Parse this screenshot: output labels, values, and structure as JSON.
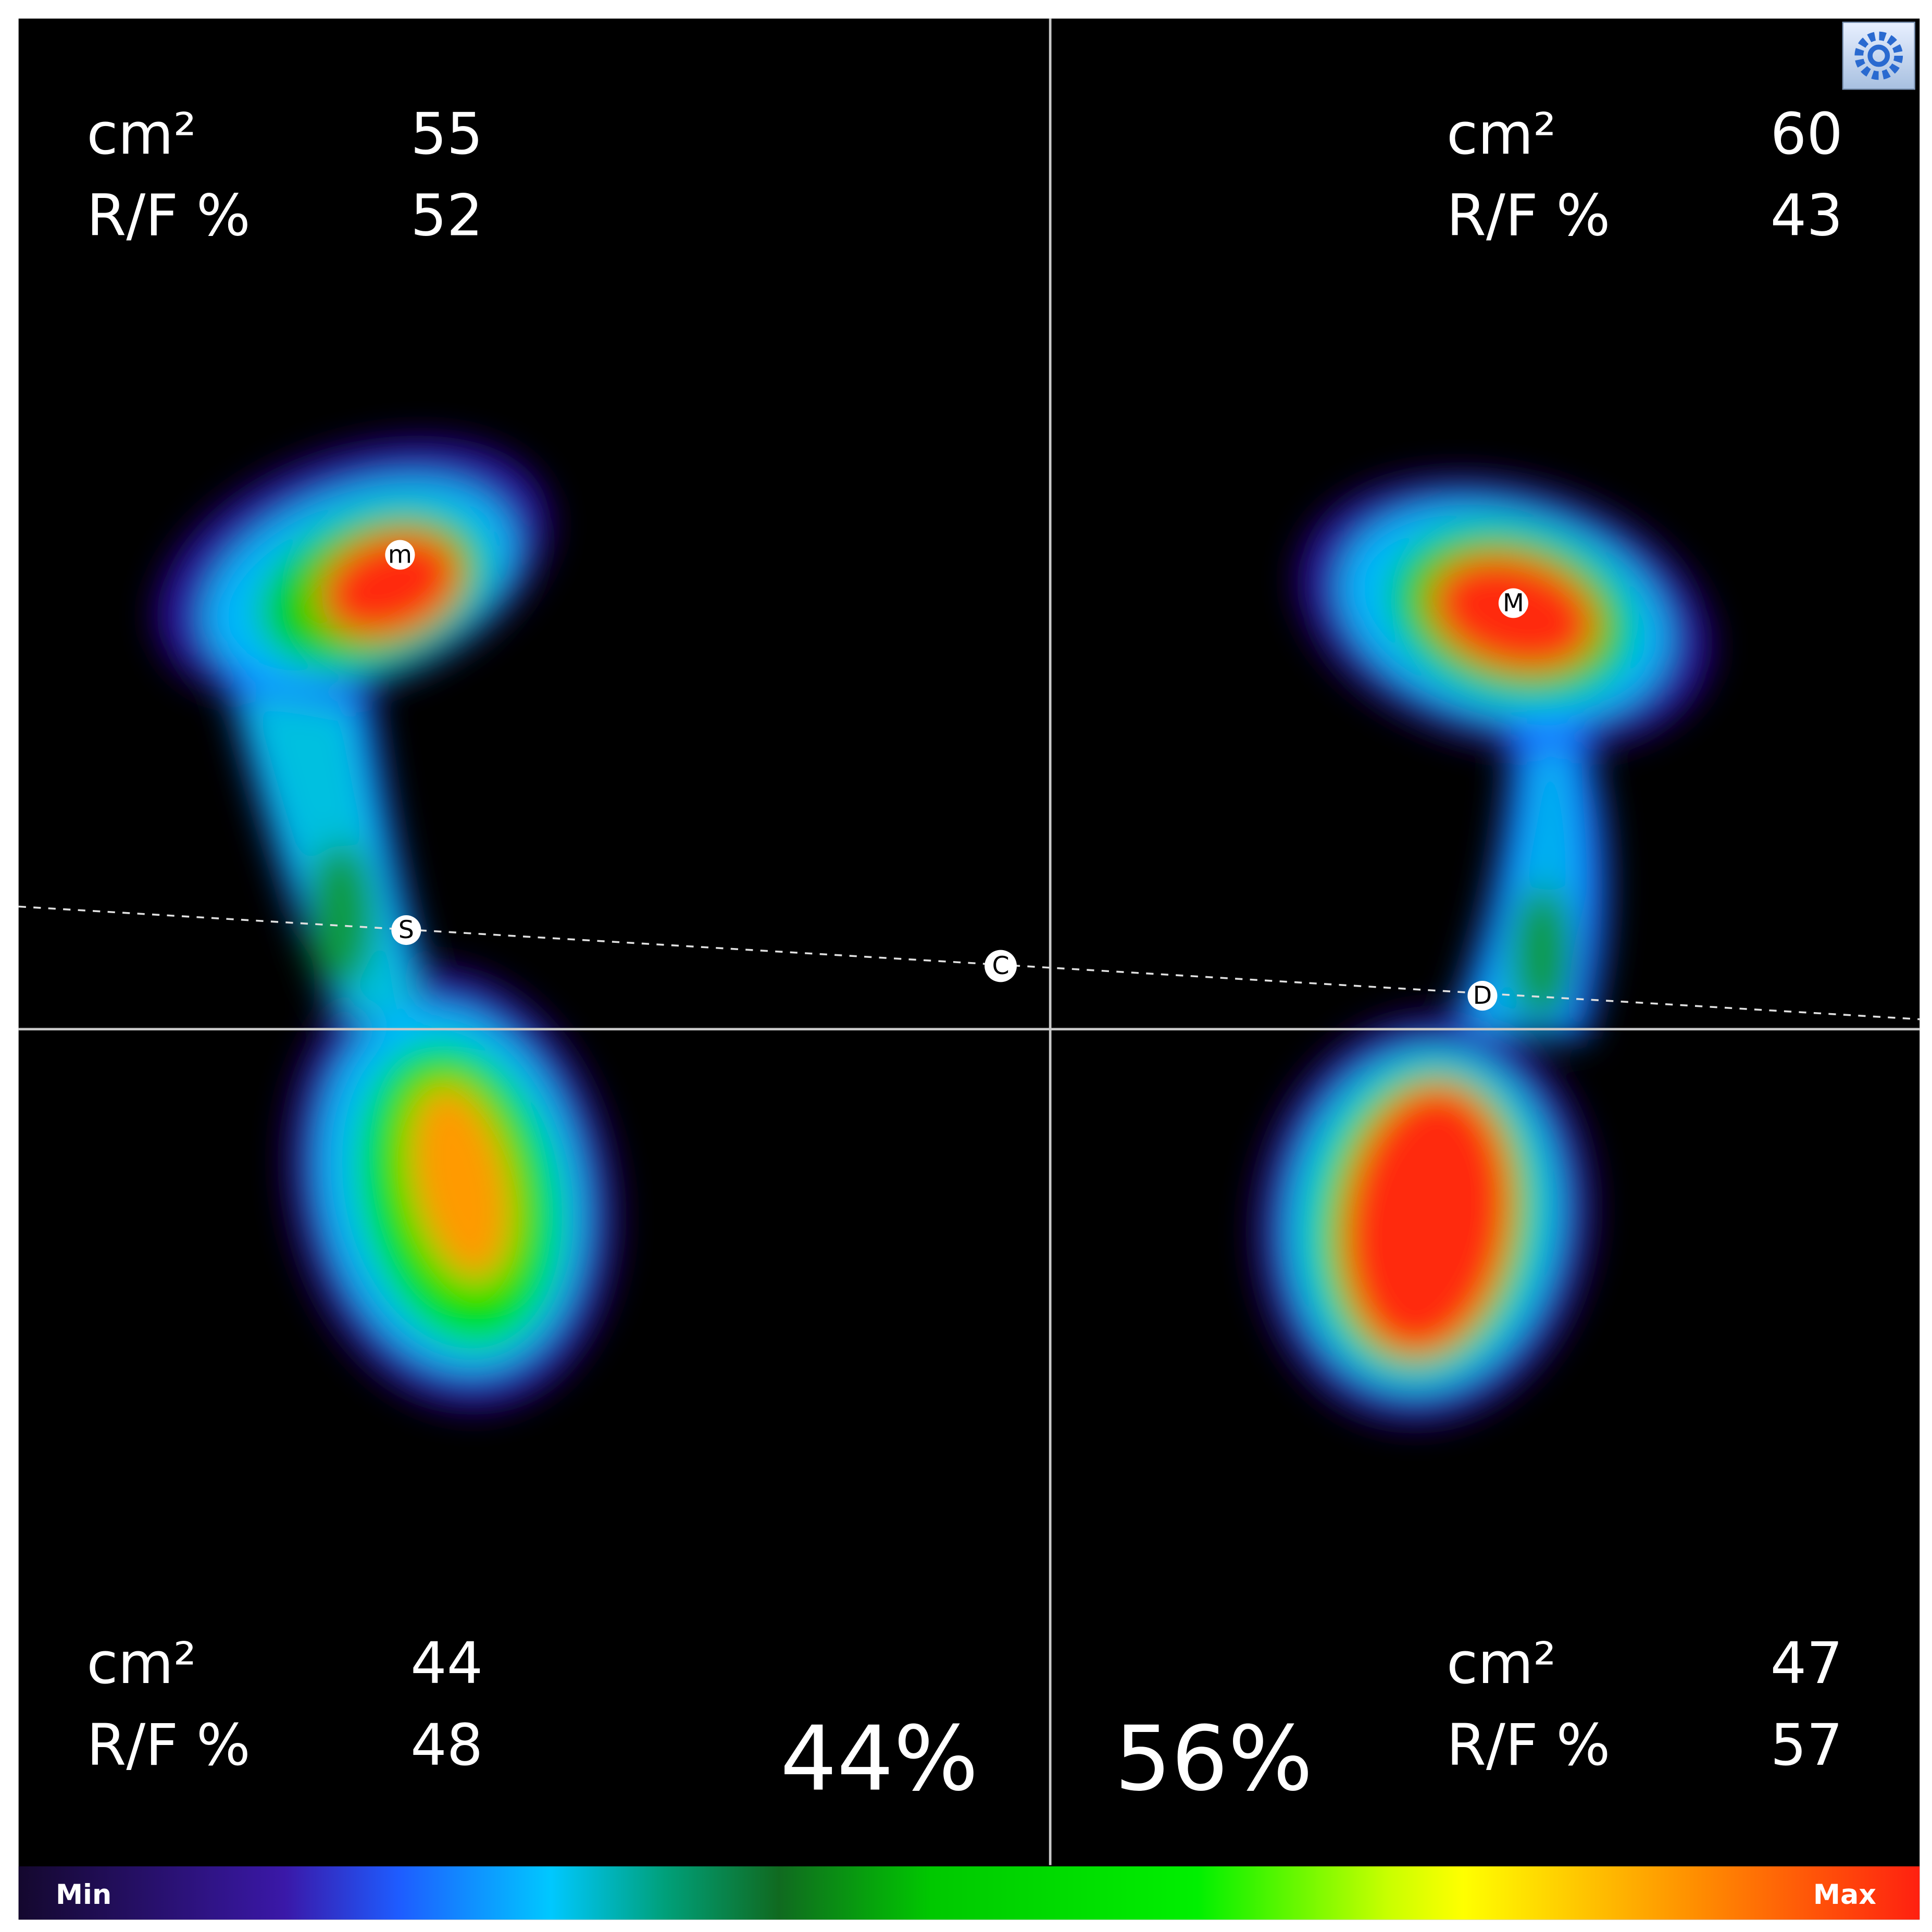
{
  "quadrants": [
    {
      "area_label": "cm²",
      "area": 55,
      "rf_label": "R/F %",
      "rf": 52
    },
    {
      "area_label": "cm²",
      "area": 60,
      "rf_label": "R/F %",
      "rf": 43
    },
    {
      "area_label": "cm²",
      "area": 44,
      "rf_label": "R/F %",
      "rf": 48
    },
    {
      "area_label": "cm²",
      "area": 47,
      "rf_label": "R/F %",
      "rf": 57
    }
  ],
  "sides": {
    "left": "44%",
    "right": "56%"
  },
  "points": [
    "m",
    "S",
    "C",
    "D",
    "M"
  ],
  "colorbar": {
    "min": "Min",
    "max": "Max"
  }
}
